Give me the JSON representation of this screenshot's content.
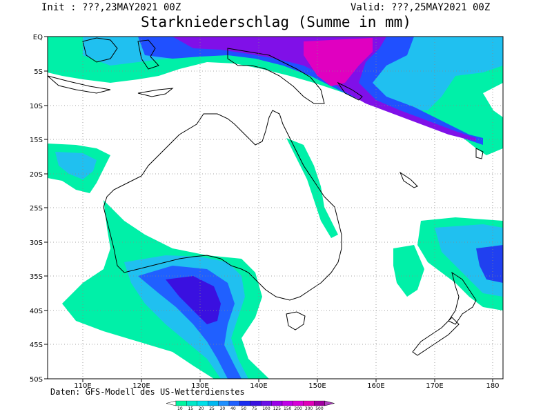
{
  "header": {
    "init": "Init : ???,23MAY2021 00Z",
    "valid": "Valid: ???,25MAY2021 00Z",
    "title": "Starkniederschlag (Summe in mm)"
  },
  "map": {
    "lat_labels": [
      "EQ",
      "5S",
      "10S",
      "15S",
      "20S",
      "25S",
      "30S",
      "35S",
      "40S",
      "45S",
      "50S"
    ],
    "lon_labels": [
      "110E",
      "120E",
      "130E",
      "140E",
      "150E",
      "160E",
      "170E",
      "180"
    ],
    "region": "Australia / Indonesia / New Zealand"
  },
  "source_note": "Daten: GFS-Modell des US-Wetterdienstes",
  "colorbar": {
    "labels": [
      "10",
      "15",
      "20",
      "25",
      "30",
      "40",
      "50",
      "75",
      "100",
      "125",
      "150",
      "200",
      "300",
      "500"
    ],
    "colors": [
      "#00f5a0",
      "#00e8c8",
      "#00e0e8",
      "#00b8f0",
      "#2090ff",
      "#2060ff",
      "#1a2cf0",
      "#3a10e0",
      "#6a10e8",
      "#9a00e8",
      "#c000e8",
      "#d800d8",
      "#e000b8",
      "#a000a0"
    ]
  }
}
